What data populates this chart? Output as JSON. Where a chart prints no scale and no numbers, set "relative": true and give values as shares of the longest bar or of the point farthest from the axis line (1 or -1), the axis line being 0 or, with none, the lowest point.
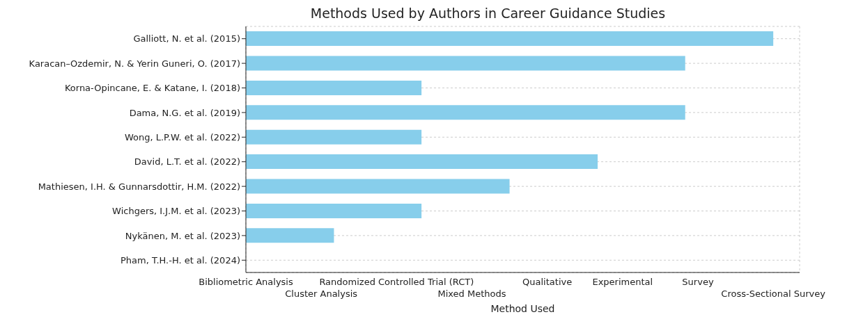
{
  "chart_data": {
    "type": "bar",
    "orientation": "horizontal",
    "relative": true,
    "title": "Methods Used by Authors in Career Guidance Studies",
    "xlabel": "Method Used",
    "categories": [
      "Galliott, N. et al. (2015)",
      "Karacan–Ozdemir, N. & Yerin Guneri, O. (2017)",
      "Korna-Opincane, E. & Katane, I. (2018)",
      "Dama, N.G. et al. (2019)",
      "Wong, L.P.W. et al. (2022)",
      "David, L.T. et al. (2022)",
      "Mathiesen, I.H. & Gunnarsdottir, H.M. (2022)",
      "Wichgers, I.J.M. et al. (2023)",
      "Nykänen, M. et al. (2023)",
      "Pham, T.H.-H. et al. (2024)"
    ],
    "values": [
      1,
      0.833,
      0.333,
      0.833,
      0.333,
      0.667,
      0.5,
      0.333,
      0.167,
      0
    ],
    "color": "#87ceeb",
    "annotations": [
      "Bibliometric Analysis",
      "Cluster Analysis",
      "Randomized Controlled Trial (RCT)",
      "Mixed Methods",
      "Qualitative",
      "Experimental",
      "Survey",
      "Cross-Sectional Survey"
    ],
    "grid": true
  }
}
